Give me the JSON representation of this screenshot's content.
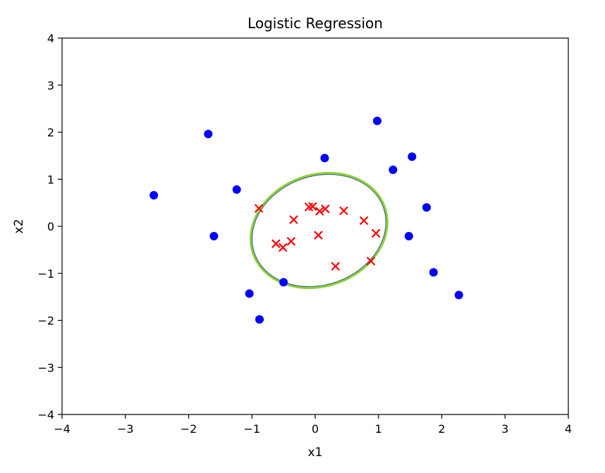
{
  "chart_data": {
    "type": "scatter",
    "title": "Logistic Regression",
    "xlabel": "x1",
    "ylabel": "x2",
    "xlim": [
      -4,
      4
    ],
    "ylim": [
      -4,
      4
    ],
    "xticks": [
      -4,
      -3,
      -2,
      -1,
      0,
      1,
      2,
      3,
      4
    ],
    "yticks": [
      -4,
      -3,
      -2,
      -1,
      0,
      1,
      2,
      3,
      4
    ],
    "grid": false,
    "series": [
      {
        "marker": "circle",
        "color": "#0000ff",
        "points": [
          [
            -2.55,
            0.66
          ],
          [
            -1.69,
            1.96
          ],
          [
            -1.6,
            -0.21
          ],
          [
            -1.24,
            0.78
          ],
          [
            -1.04,
            -1.43
          ],
          [
            -0.88,
            -1.98
          ],
          [
            -0.5,
            -1.19
          ],
          [
            0.15,
            1.45
          ],
          [
            0.98,
            2.24
          ],
          [
            1.23,
            1.2
          ],
          [
            1.53,
            1.48
          ],
          [
            1.48,
            -0.21
          ],
          [
            1.76,
            0.4
          ],
          [
            1.87,
            -0.98
          ],
          [
            2.27,
            -1.46
          ]
        ]
      },
      {
        "marker": "x",
        "color": "#ff0000",
        "points": [
          [
            -0.89,
            0.38
          ],
          [
            -0.62,
            -0.37
          ],
          [
            -0.51,
            -0.45
          ],
          [
            -0.38,
            -0.32
          ],
          [
            -0.34,
            0.14
          ],
          [
            -0.1,
            0.41
          ],
          [
            -0.04,
            0.42
          ],
          [
            0.07,
            0.32
          ],
          [
            0.16,
            0.37
          ],
          [
            0.05,
            -0.19
          ],
          [
            0.45,
            0.33
          ],
          [
            0.32,
            -0.85
          ],
          [
            0.77,
            0.12
          ],
          [
            0.96,
            -0.15
          ],
          [
            0.88,
            -0.74
          ]
        ]
      }
    ],
    "decision_boundary": {
      "shape": "ellipse",
      "center": [
        0.06,
        -0.09
      ],
      "radius_x": 1.1,
      "radius_y": 1.18,
      "rotation_deg": -20,
      "fill_color": "#ffffff",
      "line_color": "#8fce3a",
      "inner_line_color": "#2f5f8a"
    }
  }
}
